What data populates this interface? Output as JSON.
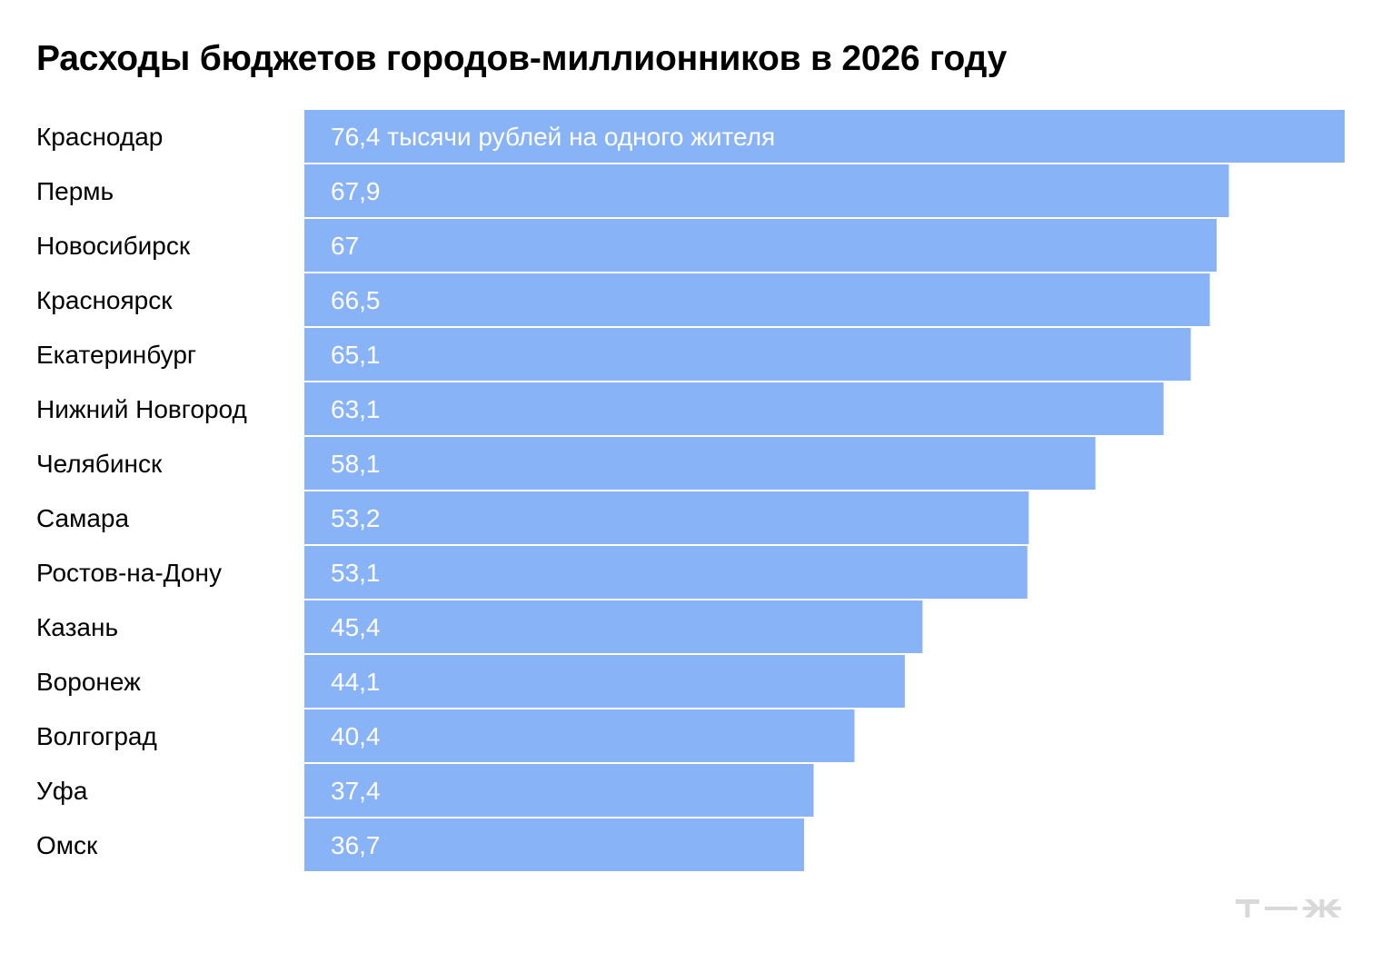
{
  "chart_data": {
    "type": "bar",
    "orientation": "horizontal",
    "title": "Расходы бюджетов городов-миллионников в 2026 году",
    "categories": [
      "Краснодар",
      "Пермь",
      "Новосибирск",
      "Красноярск",
      "Екатеринбург",
      "Нижний Новгород",
      "Челябинск",
      "Самара",
      "Ростов-на-Дону",
      "Казань",
      "Воронеж",
      "Волгоград",
      "Уфа",
      "Омск"
    ],
    "values": [
      76.4,
      67.9,
      67,
      66.5,
      65.1,
      63.1,
      58.1,
      53.2,
      53.1,
      45.4,
      44.1,
      40.4,
      37.4,
      36.7
    ],
    "value_labels": [
      "76,4 тысячи рублей на одного жителя",
      "67,9",
      "67",
      "66,5",
      "65,1",
      "63,1",
      "58,1",
      "53,2",
      "53,1",
      "45,4",
      "44,1",
      "40,4",
      "37,4",
      "36,7"
    ],
    "xlim": [
      0,
      76.4
    ],
    "grid": false,
    "legend": "none",
    "bar_color": "#89b3f7",
    "label_color": "#000000",
    "value_label_color": "#ffffff"
  },
  "brand": {
    "logo_icon": "tzh-logo-icon",
    "logo_color": "#d9d9d9"
  }
}
